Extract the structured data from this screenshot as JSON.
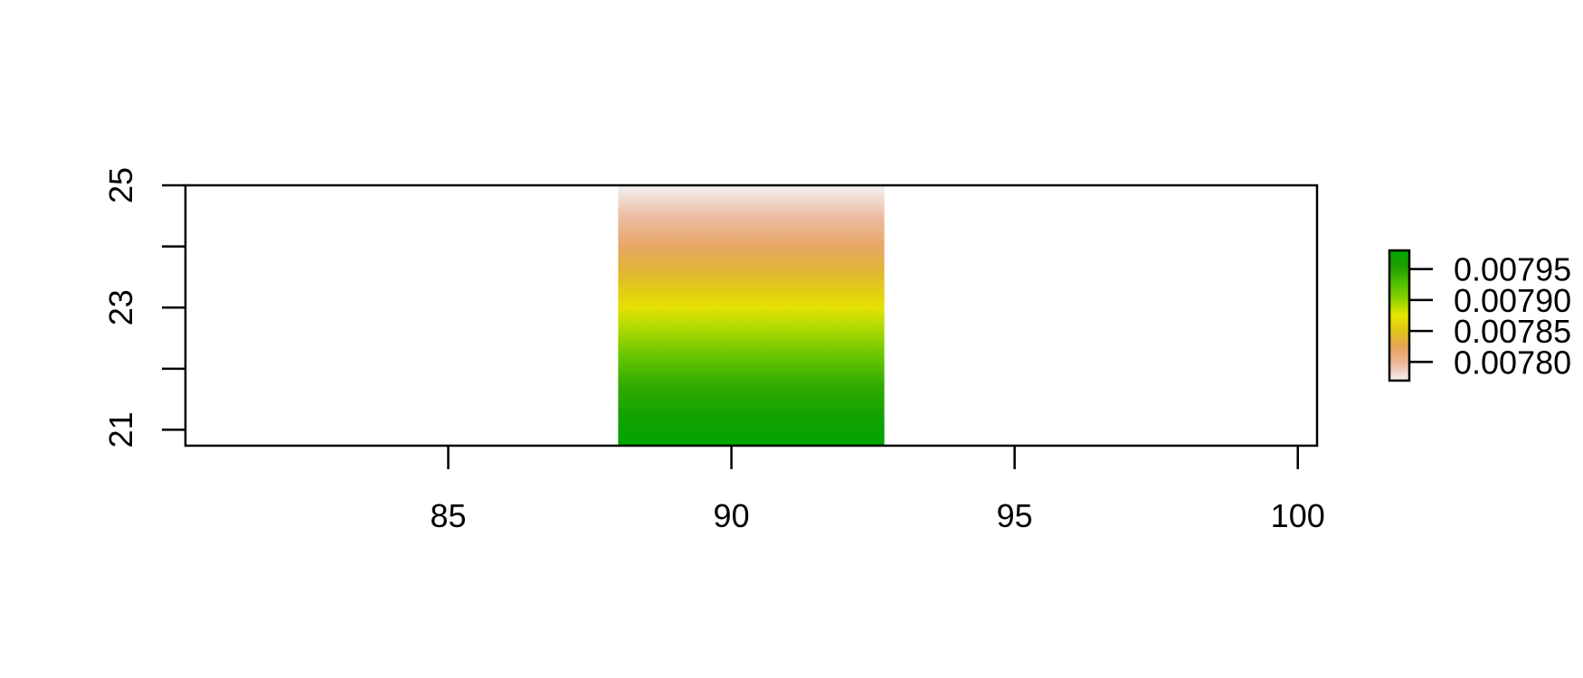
{
  "chart_data": {
    "type": "heatmap",
    "title": "",
    "xlabel": "",
    "ylabel": "",
    "xlim": [
      80.36,
      100.34
    ],
    "ylim": [
      20.74,
      25.0
    ],
    "x_ticks": [
      85,
      90,
      95,
      100
    ],
    "x_tick_labels": [
      "85",
      "90",
      "95",
      "100"
    ],
    "y_ticks": [
      21,
      22,
      23,
      24,
      25
    ],
    "y_tick_labels": [
      "21",
      "23",
      "25"
    ],
    "y_labeled_ticks": [
      21,
      23,
      25
    ],
    "raster": {
      "x_range": [
        88.0,
        92.7
      ],
      "y_range": [
        20.74,
        25.0
      ],
      "gradient_direction": "vertical",
      "y_values": [
        20.74,
        21.2,
        21.7,
        22.2,
        22.7,
        23.0,
        23.2,
        23.6,
        24.0,
        24.5,
        25.0
      ],
      "values": [
        0.00798,
        0.007966,
        0.007945,
        0.007918,
        0.00789,
        0.007872,
        0.00786,
        0.007838,
        0.007818,
        0.007795,
        0.00777
      ]
    },
    "legend": {
      "position": "right",
      "zlim": [
        0.00777,
        0.00798
      ],
      "ticks": [
        0.0078,
        0.00785,
        0.0079,
        0.00795
      ],
      "tick_labels": [
        "0.00780",
        "0.00785",
        "0.00790",
        "0.00795"
      ],
      "colors": [
        "#f2f2f2",
        "#edb9a1",
        "#e6a35a",
        "#e0c21b",
        "#e6e600",
        "#8fd100",
        "#4ec000",
        "#1f9f00",
        "#00a600"
      ]
    },
    "grid": false
  }
}
